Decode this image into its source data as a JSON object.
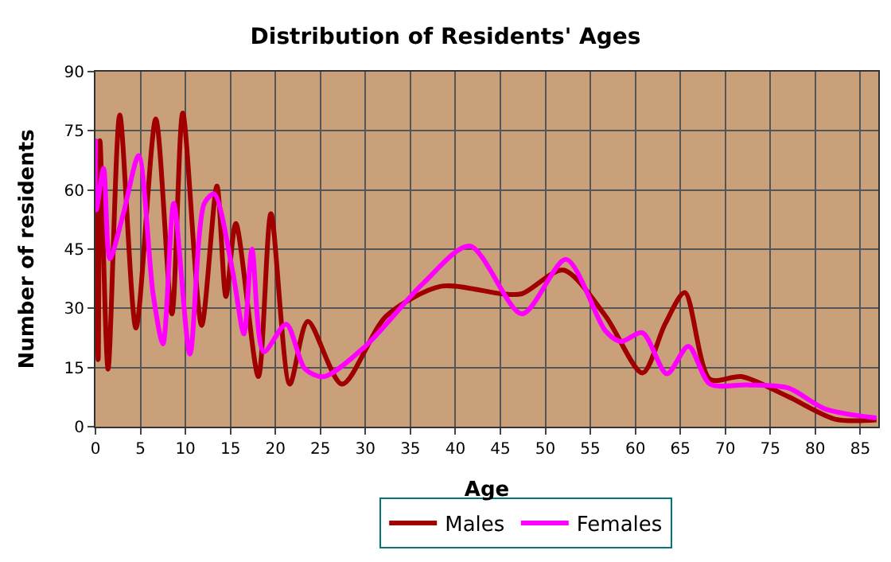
{
  "chart_data": {
    "type": "line",
    "title": "Distribution of Residents' Ages",
    "xlabel": "Age",
    "ylabel": "Number of residents",
    "xlim": [
      0,
      87
    ],
    "xticks": [
      0,
      5,
      10,
      15,
      20,
      25,
      30,
      35,
      40,
      45,
      50,
      55,
      60,
      65,
      70,
      75,
      80,
      85
    ],
    "ylim": [
      0,
      90
    ],
    "yticks": [
      0,
      15,
      30,
      45,
      60,
      75,
      90
    ],
    "grid": true,
    "legend": "bottom",
    "marker": "none",
    "line_style": "solid",
    "series": [
      {
        "name": "Males",
        "color": "#a00000",
        "x": [
          0,
          0.3,
          0.5,
          1.4,
          2.7,
          4.5,
          6.7,
          8.5,
          9.7,
          11.8,
          13.5,
          14.5,
          15.6,
          18.1,
          19.5,
          21.6,
          23.6,
          27.4,
          32.3,
          38.4,
          45.1,
          47.4,
          52.0,
          56.7,
          60.8,
          63.3,
          65.5,
          68.3,
          71.8,
          77,
          82.2,
          86.8
        ],
        "values": [
          55,
          17,
          72.5,
          14.6,
          79,
          25,
          78,
          28.6,
          79.5,
          25.7,
          61,
          33,
          51.5,
          12.7,
          54,
          10.8,
          26.7,
          10.8,
          28,
          35.6,
          33.7,
          33.7,
          39.7,
          28,
          13.6,
          26,
          34,
          12,
          12.7,
          7.6,
          1.9,
          1.7
        ]
      },
      {
        "name": "Females",
        "color": "#ff00ff",
        "x": [
          0,
          0.1,
          0.9,
          1.6,
          3.1,
          4.8,
          6.4,
          7.5,
          8.7,
          10.5,
          12.1,
          13.2,
          15.2,
          16.5,
          17.4,
          18.7,
          21.2,
          23.3,
          25.4,
          30,
          36.4,
          41.6,
          47.4,
          52.3,
          56.7,
          58.4,
          60.8,
          63.5,
          65.9,
          68.3,
          72.4,
          77,
          81.1,
          86.8
        ],
        "values": [
          73,
          55,
          65.5,
          42.6,
          54,
          68.7,
          33.7,
          21,
          56.6,
          18.4,
          56.6,
          59,
          40,
          23.5,
          45,
          19,
          26,
          14.6,
          12.7,
          20.4,
          36.3,
          45.8,
          28.6,
          42.4,
          24.2,
          21.6,
          23.8,
          13.4,
          20.4,
          10.8,
          10.6,
          9.8,
          4.5,
          2.2
        ]
      }
    ]
  }
}
